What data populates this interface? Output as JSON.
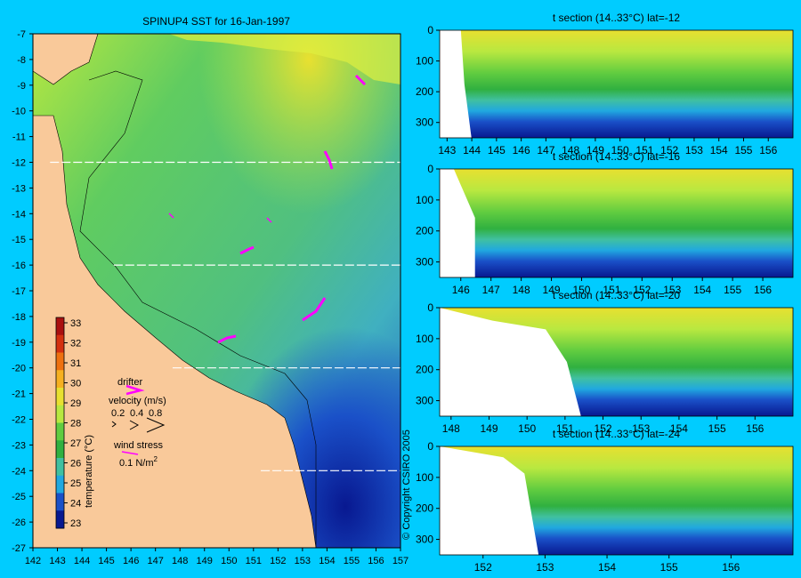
{
  "map": {
    "title": "SPINUP4 SST for 16-Jan-1997",
    "lon_ticks": [
      "142",
      "143",
      "144",
      "145",
      "146",
      "147",
      "148",
      "149",
      "150",
      "151",
      "152",
      "153",
      "154",
      "155",
      "156",
      "157"
    ],
    "lat_ticks": [
      "-7",
      "-8",
      "-9",
      "-10",
      "-11",
      "-12",
      "-13",
      "-14",
      "-15",
      "-16",
      "-17",
      "-18",
      "-19",
      "-20",
      "-21",
      "-22",
      "-23",
      "-24",
      "-25",
      "-26",
      "-27"
    ],
    "lon_range": [
      142,
      157
    ],
    "lat_range": [
      -7,
      -27
    ],
    "section_lats": [
      -12,
      -16,
      -20,
      -24
    ],
    "colors": {
      "land": "#f9c99a",
      "background": "#00ccff"
    }
  },
  "colorbar": {
    "label": "temperature (°C)",
    "ticks": [
      "33",
      "32",
      "31",
      "30",
      "29",
      "28",
      "27",
      "26",
      "25",
      "24",
      "23"
    ],
    "colors": [
      "#aa1010",
      "#d43010",
      "#ee7010",
      "#f6b020",
      "#e8e030",
      "#b8e840",
      "#60cc40",
      "#30b040",
      "#40c0a0",
      "#20a8e0",
      "#1a50c8",
      "#081890"
    ]
  },
  "legend": {
    "drifter": "drifter",
    "velocity": "velocity (m/s)",
    "velocity_values": [
      "0.2",
      "0.4",
      "0.8"
    ],
    "wind": "wind stress",
    "wind_value": "0.1 N/m",
    "wind_exp": "2"
  },
  "copyright": "© Copyright CSIRO 2005",
  "sections": [
    {
      "title": "t section (14..33°C) lat=-12",
      "x_ticks": [
        "143",
        "144",
        "145",
        "146",
        "147",
        "148",
        "149",
        "150",
        "151",
        "152",
        "153",
        "154",
        "155",
        "156"
      ],
      "lon_range": [
        142.7,
        157
      ],
      "y_ticks": [
        "0",
        "100",
        "200",
        "300"
      ]
    },
    {
      "title": "t section (14..33°C) lat=-16",
      "x_ticks": [
        "146",
        "147",
        "148",
        "149",
        "150",
        "151",
        "152",
        "153",
        "154",
        "155",
        "156"
      ],
      "lon_range": [
        145.3,
        157
      ],
      "y_ticks": [
        "0",
        "100",
        "200",
        "300"
      ]
    },
    {
      "title": "t section (14..33°C) lat=-20",
      "x_ticks": [
        "148",
        "149",
        "150",
        "151",
        "152",
        "153",
        "154",
        "155",
        "156"
      ],
      "lon_range": [
        147.7,
        157
      ],
      "y_ticks": [
        "0",
        "100",
        "200",
        "300"
      ]
    },
    {
      "title": "t section (14..33°C) lat=-24",
      "x_ticks": [
        "152",
        "153",
        "154",
        "155",
        "156"
      ],
      "lon_range": [
        151.3,
        157
      ],
      "y_ticks": [
        "0",
        "100",
        "200",
        "300"
      ]
    }
  ]
}
